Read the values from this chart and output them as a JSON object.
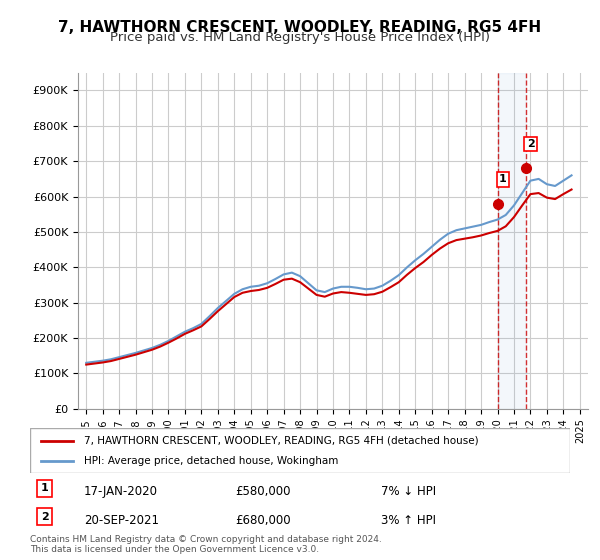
{
  "title": "7, HAWTHORN CRESCENT, WOODLEY, READING, RG5 4FH",
  "subtitle": "Price paid vs. HM Land Registry's House Price Index (HPI)",
  "title_fontsize": 11,
  "subtitle_fontsize": 9.5,
  "ylim": [
    0,
    950000
  ],
  "yticks": [
    0,
    100000,
    200000,
    300000,
    400000,
    500000,
    600000,
    700000,
    800000,
    900000
  ],
  "ytick_labels": [
    "£0",
    "£100K",
    "£200K",
    "£300K",
    "£400K",
    "£500K",
    "£600K",
    "£700K",
    "£800K",
    "£900K"
  ],
  "xlim_start": 1994.5,
  "xlim_end": 2025.5,
  "background_color": "#ffffff",
  "plot_bg_color": "#ffffff",
  "grid_color": "#cccccc",
  "red_color": "#cc0000",
  "blue_color": "#6699cc",
  "legend_label_red": "7, HAWTHORN CRESCENT, WOODLEY, READING, RG5 4FH (detached house)",
  "legend_label_blue": "HPI: Average price, detached house, Wokingham",
  "transaction1_date": "17-JAN-2020",
  "transaction1_price": "£580,000",
  "transaction1_pct": "7% ↓ HPI",
  "transaction1_year": 2020.04,
  "transaction1_value": 580000,
  "transaction2_date": "20-SEP-2021",
  "transaction2_price": "£680,000",
  "transaction2_pct": "3% ↑ HPI",
  "transaction2_year": 2021.72,
  "transaction2_value": 680000,
  "footer": "Contains HM Land Registry data © Crown copyright and database right 2024.\nThis data is licensed under the Open Government Licence v3.0.",
  "hpi_years": [
    1995,
    1995.5,
    1996,
    1996.5,
    1997,
    1997.5,
    1998,
    1998.5,
    1999,
    1999.5,
    2000,
    2000.5,
    2001,
    2001.5,
    2002,
    2002.5,
    2003,
    2003.5,
    2004,
    2004.5,
    2005,
    2005.5,
    2006,
    2006.5,
    2007,
    2007.5,
    2008,
    2008.5,
    2009,
    2009.5,
    2010,
    2010.5,
    2011,
    2011.5,
    2012,
    2012.5,
    2013,
    2013.5,
    2014,
    2014.5,
    2015,
    2015.5,
    2016,
    2016.5,
    2017,
    2017.5,
    2018,
    2018.5,
    2019,
    2019.5,
    2020,
    2020.5,
    2021,
    2021.5,
    2022,
    2022.5,
    2023,
    2023.5,
    2024,
    2024.5
  ],
  "hpi_values": [
    130000,
    133000,
    136000,
    140000,
    146000,
    152000,
    158000,
    165000,
    172000,
    181000,
    192000,
    205000,
    218000,
    228000,
    240000,
    262000,
    285000,
    305000,
    325000,
    338000,
    345000,
    348000,
    355000,
    367000,
    380000,
    385000,
    375000,
    355000,
    335000,
    330000,
    340000,
    345000,
    345000,
    342000,
    338000,
    340000,
    348000,
    362000,
    378000,
    400000,
    420000,
    438000,
    458000,
    478000,
    495000,
    505000,
    510000,
    515000,
    520000,
    528000,
    535000,
    548000,
    575000,
    610000,
    645000,
    650000,
    635000,
    630000,
    645000,
    660000
  ],
  "price_years": [
    1995,
    1995.5,
    1996,
    1996.5,
    1997,
    1997.5,
    1998,
    1998.5,
    1999,
    1999.5,
    2000,
    2000.5,
    2001,
    2001.5,
    2002,
    2002.5,
    2003,
    2003.5,
    2004,
    2004.5,
    2005,
    2005.5,
    2006,
    2006.5,
    2007,
    2007.5,
    2008,
    2008.5,
    2009,
    2009.5,
    2010,
    2010.5,
    2011,
    2011.5,
    2012,
    2012.5,
    2013,
    2013.5,
    2014,
    2014.5,
    2015,
    2015.5,
    2016,
    2016.5,
    2017,
    2017.5,
    2018,
    2018.5,
    2019,
    2019.5,
    2020,
    2020.5,
    2021,
    2021.5,
    2022,
    2022.5,
    2023,
    2023.5,
    2024,
    2024.5
  ],
  "price_values": [
    125000,
    128000,
    131000,
    135000,
    141000,
    147000,
    153000,
    160000,
    167000,
    176000,
    187000,
    199000,
    212000,
    222000,
    233000,
    254000,
    276000,
    296000,
    316000,
    328000,
    333000,
    336000,
    342000,
    353000,
    365000,
    368000,
    358000,
    340000,
    322000,
    317000,
    326000,
    330000,
    328000,
    325000,
    322000,
    324000,
    331000,
    344000,
    358000,
    379000,
    398000,
    415000,
    435000,
    453000,
    468000,
    477000,
    481000,
    485000,
    490000,
    497000,
    503000,
    516000,
    542000,
    575000,
    607000,
    610000,
    597000,
    593000,
    607000,
    620000
  ]
}
